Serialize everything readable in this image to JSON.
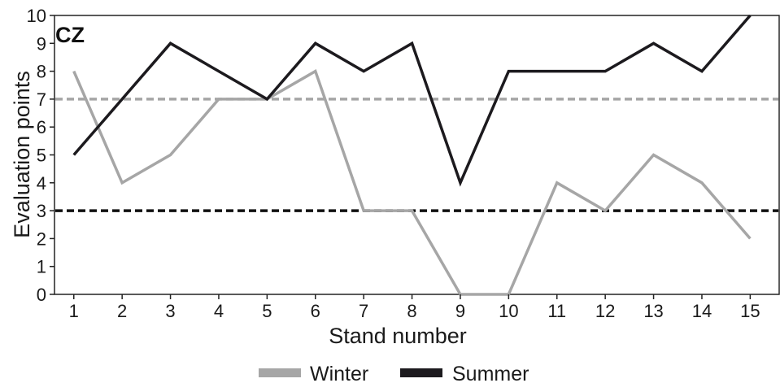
{
  "chart_data": {
    "type": "line",
    "panel_label": "CZ",
    "xlabel": "Stand number",
    "ylabel": "Evaluation points",
    "x": [
      1,
      2,
      3,
      4,
      5,
      6,
      7,
      8,
      9,
      10,
      11,
      12,
      13,
      14,
      15
    ],
    "xlim": [
      0.6,
      15.6
    ],
    "ylim": [
      0,
      10
    ],
    "yticks": [
      0,
      1,
      2,
      3,
      4,
      5,
      6,
      7,
      8,
      9,
      10
    ],
    "grid": false,
    "legend_position": "bottom",
    "series": [
      {
        "name": "Winter",
        "color": "#a6a6a6",
        "values": [
          8,
          4,
          5,
          7,
          7,
          8,
          3,
          3,
          0,
          0,
          4,
          3,
          5,
          4,
          2
        ]
      },
      {
        "name": "Summer",
        "color": "#1c1a1e",
        "values": [
          5,
          7,
          9,
          8,
          7,
          9,
          8,
          9,
          4,
          8,
          8,
          8,
          9,
          8,
          10
        ]
      }
    ],
    "reference_lines": [
      {
        "y": 7,
        "color": "#a6a6a6",
        "style": "dashed"
      },
      {
        "y": 3,
        "color": "#111111",
        "style": "dashed"
      }
    ]
  }
}
